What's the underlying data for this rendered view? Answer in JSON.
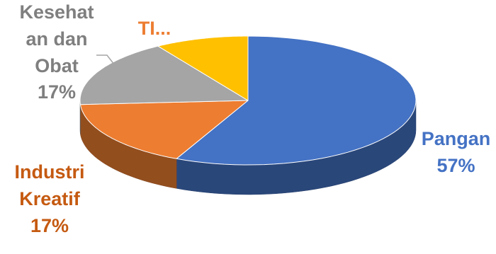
{
  "chart_data": {
    "type": "pie",
    "style": "3d",
    "title": "",
    "legend": "none",
    "slices": [
      {
        "label": "Pangan",
        "label_lines": [
          "Pangan"
        ],
        "percent_text": "57%",
        "value": 57,
        "color": "#4472C4"
      },
      {
        "label": "Industri Kreatif",
        "label_lines": [
          "Industri",
          "Kreatif"
        ],
        "percent_text": "17%",
        "value": 17,
        "color": "#ED7D31"
      },
      {
        "label": "Kesehatan dan Obat",
        "label_lines": [
          "Kesehat",
          "an dan",
          "Obat"
        ],
        "percent_text": "17%",
        "value": 17,
        "color": "#A5A5A5"
      },
      {
        "label": "TI",
        "label_lines": [
          "TI..."
        ],
        "percent_text": "",
        "value": 9,
        "color": "#FFC000"
      }
    ]
  }
}
